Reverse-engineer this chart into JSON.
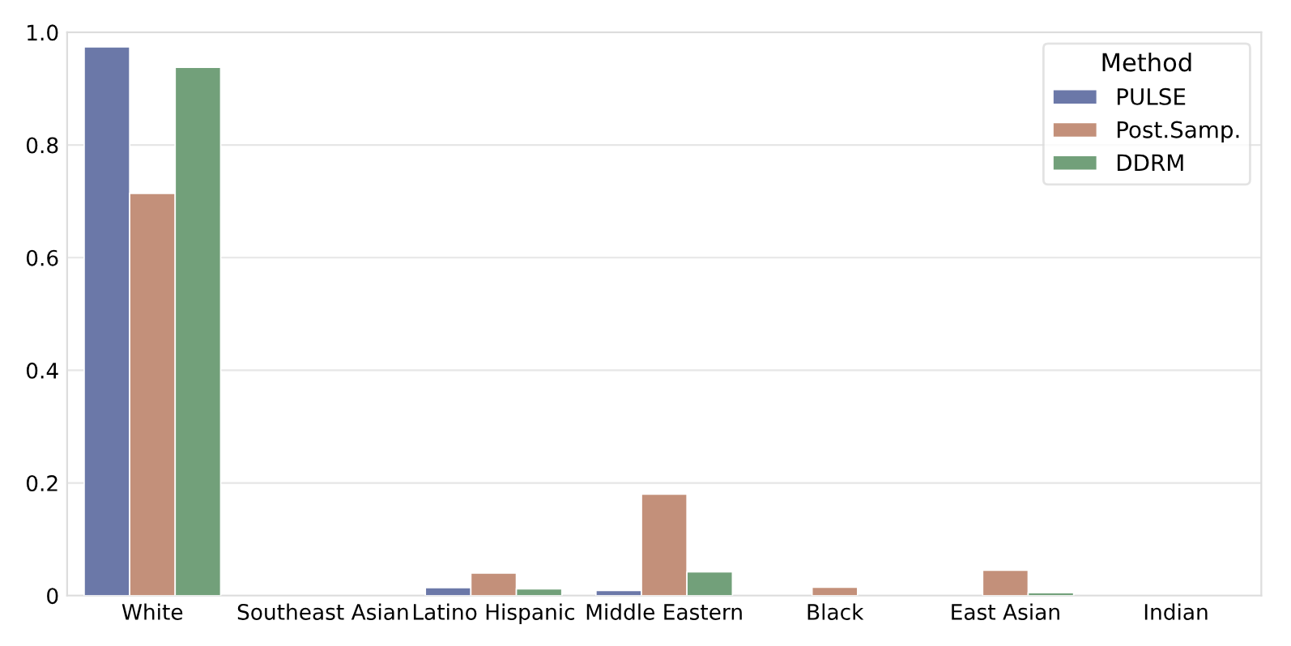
{
  "chart_data": {
    "type": "bar",
    "categories": [
      "White",
      "Southeast Asian",
      "Latino Hispanic",
      "Middle Eastern",
      "Black",
      "East Asian",
      "Indian"
    ],
    "series": [
      {
        "name": "PULSE",
        "color": "#6b78a8",
        "values": [
          0.974,
          null,
          0.014,
          0.009,
          null,
          null,
          null
        ]
      },
      {
        "name": "Post.Samp.",
        "color": "#c3907a",
        "values": [
          0.714,
          null,
          0.04,
          0.18,
          0.015,
          0.045,
          null
        ]
      },
      {
        "name": "DDRM",
        "color": "#72a07a",
        "values": [
          0.938,
          null,
          0.012,
          0.042,
          null,
          0.005,
          null
        ]
      }
    ],
    "legend_title": "Method",
    "legend": "top right",
    "ylim": [
      0,
      1.0
    ],
    "yticks": [
      0,
      {
        "value": 0.2,
        "label": "0.2"
      },
      {
        "value": 0.4,
        "label": "0.4"
      },
      {
        "value": 0.6,
        "label": "0.6"
      },
      {
        "value": 0.8,
        "label": "0.8"
      },
      {
        "value": 1.0,
        "label": "1.0"
      }
    ],
    "grid": "y"
  }
}
